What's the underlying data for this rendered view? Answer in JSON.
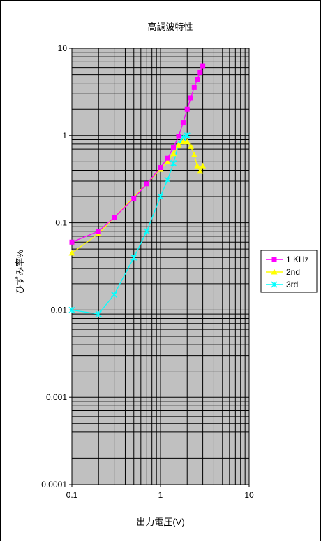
{
  "chart_data": {
    "type": "line",
    "title": "高調波特性",
    "xlabel": "出力電圧(V)",
    "ylabel": "ひずみ率%",
    "xscale": "log",
    "yscale": "log",
    "xlim": [
      0.1,
      10
    ],
    "ylim": [
      0.0001,
      10
    ],
    "x_ticks": [
      "0.1",
      "1",
      "10"
    ],
    "y_ticks": [
      "10",
      "1",
      "0.1",
      "0.01",
      "0.001",
      "0.0001"
    ],
    "grid": true,
    "plot_background": "#c0c0c0",
    "legend": "right",
    "series": [
      {
        "name": "1 KHz",
        "color": "#ff00ff",
        "marker": "square",
        "x": [
          0.1,
          0.2,
          0.3,
          0.5,
          0.7,
          1.0,
          1.2,
          1.4,
          1.6,
          1.8,
          2.0,
          2.2,
          2.4,
          2.6,
          2.8,
          3.0
        ],
        "y": [
          0.06,
          0.08,
          0.115,
          0.19,
          0.28,
          0.43,
          0.55,
          0.73,
          0.98,
          1.4,
          2.0,
          2.7,
          3.6,
          4.4,
          5.3,
          6.3
        ]
      },
      {
        "name": "2nd",
        "color": "#ffff00",
        "marker": "triangle",
        "x": [
          0.1,
          0.2,
          1.0,
          1.2,
          1.4,
          1.6,
          1.8,
          2.0,
          2.2,
          2.4,
          2.6,
          2.8,
          3.0
        ],
        "y": [
          0.045,
          0.075,
          0.41,
          0.5,
          0.62,
          0.78,
          0.85,
          0.85,
          0.75,
          0.6,
          0.45,
          0.39,
          0.45
        ]
      },
      {
        "name": "3rd",
        "color": "#00ffff",
        "marker": "star",
        "x": [
          0.1,
          0.2,
          0.3,
          0.5,
          0.7,
          1.0,
          1.2,
          1.4,
          1.6,
          1.8,
          2.0
        ],
        "y": [
          0.01,
          0.009,
          0.015,
          0.04,
          0.08,
          0.2,
          0.31,
          0.48,
          0.8,
          0.95,
          1.0
        ]
      }
    ]
  }
}
